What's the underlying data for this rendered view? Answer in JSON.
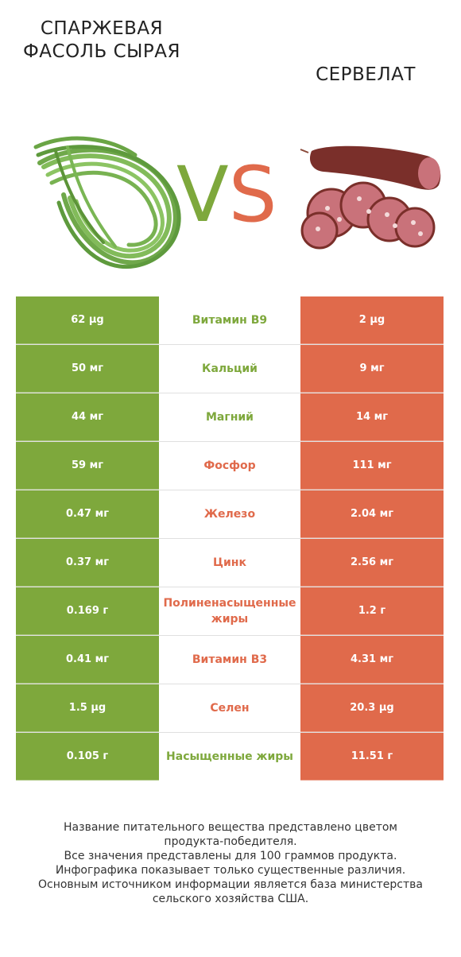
{
  "left_product": {
    "name": "Спаржевая фасоль сырая",
    "color": "#7ea83c",
    "image": "green-beans-image"
  },
  "right_product": {
    "name": "Сервелат",
    "color": "#e06a4b",
    "image": "cervelat-image"
  },
  "vs": {
    "v": "V",
    "s": "S"
  },
  "rows": [
    {
      "left": "62 µg",
      "name": "Витамин B9",
      "right": "2 µg",
      "winner": "left"
    },
    {
      "left": "50 мг",
      "name": "Кальций",
      "right": "9 мг",
      "winner": "left"
    },
    {
      "left": "44 мг",
      "name": "Магний",
      "right": "14 мг",
      "winner": "left"
    },
    {
      "left": "59 мг",
      "name": "Фосфор",
      "right": "111 мг",
      "winner": "right"
    },
    {
      "left": "0.47 мг",
      "name": "Железо",
      "right": "2.04 мг",
      "winner": "right"
    },
    {
      "left": "0.37 мг",
      "name": "Цинк",
      "right": "2.56 мг",
      "winner": "right"
    },
    {
      "left": "0.169 г",
      "name": "Полиненасыщенные жиры",
      "right": "1.2 г",
      "winner": "right"
    },
    {
      "left": "0.41 мг",
      "name": "Витамин B3",
      "right": "4.31 мг",
      "winner": "right"
    },
    {
      "left": "1.5 µg",
      "name": "Селен",
      "right": "20.3 µg",
      "winner": "right"
    },
    {
      "left": "0.105 г",
      "name": "Насыщенные жиры",
      "right": "11.51 г",
      "winner": "left"
    }
  ],
  "footer": [
    "Название питательного вещества представлено цветом",
    "продукта-победителя.",
    "Все значения представлены для 100 граммов продукта.",
    "Инфографика показывает только существенные различия.",
    "Основным источником информации является база министерства",
    "сельского хозяйства США."
  ]
}
